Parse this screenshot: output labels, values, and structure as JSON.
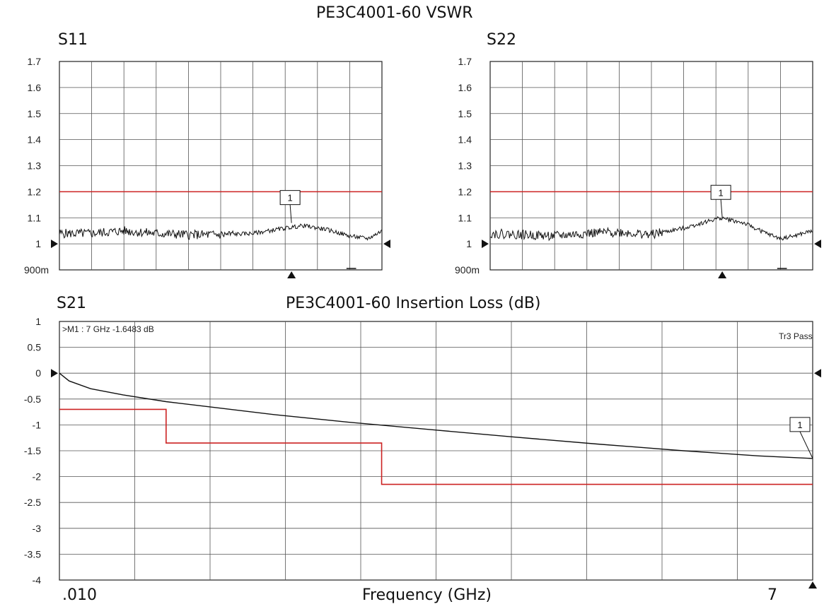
{
  "page": {
    "vswr_title": "PE3C4001-60 VSWR",
    "il_title": "PE3C4001-60 Insertion Loss (dB)",
    "xlabel": "Frequency (GHz)",
    "x_start_label": ".010",
    "x_stop_label": "7"
  },
  "chart_data": [
    {
      "id": "s11",
      "type": "line",
      "label": "S11",
      "y_ticks": [
        "1.7",
        "1.6",
        "1.5",
        "1.4",
        "1.3",
        "1.2",
        "1.1",
        "1",
        "900m"
      ],
      "ylim": [
        0.9,
        1.7
      ],
      "xlim": [
        0.01,
        7
      ],
      "grid": true,
      "limit_line": 1.2,
      "limit_color": "#cc2222",
      "trace_color": "#111111",
      "marker": {
        "label": "1",
        "x": 5.04,
        "y": 1.08
      },
      "series": [
        {
          "x": [
            0.01,
            0.7,
            1.4,
            2.1,
            2.8,
            3.5,
            4.2,
            4.9,
            5.3,
            5.8,
            6.3,
            6.7,
            7.0
          ],
          "values": [
            1.04,
            1.04,
            1.05,
            1.04,
            1.035,
            1.035,
            1.04,
            1.06,
            1.07,
            1.055,
            1.03,
            1.02,
            1.05
          ]
        }
      ]
    },
    {
      "id": "s22",
      "type": "line",
      "label": "S22",
      "y_ticks": [
        "1.7",
        "1.6",
        "1.5",
        "1.4",
        "1.3",
        "1.2",
        "1.1",
        "1",
        "900m"
      ],
      "ylim": [
        0.9,
        1.7
      ],
      "xlim": [
        0.01,
        7
      ],
      "grid": true,
      "limit_line": 1.2,
      "limit_color": "#cc2222",
      "trace_color": "#111111",
      "marker": {
        "label": "1",
        "x": 5.04,
        "y": 1.1
      },
      "series": [
        {
          "x": [
            0.01,
            0.7,
            1.4,
            2.1,
            2.8,
            3.5,
            4.2,
            4.6,
            5.0,
            5.5,
            6.0,
            6.3,
            6.6,
            7.0
          ],
          "values": [
            1.04,
            1.035,
            1.03,
            1.04,
            1.045,
            1.035,
            1.06,
            1.08,
            1.1,
            1.08,
            1.04,
            1.02,
            1.03,
            1.05
          ]
        }
      ]
    },
    {
      "id": "s21",
      "type": "line",
      "label": "S21",
      "y_ticks": [
        "1",
        "0.5",
        "0",
        "-0.5",
        "-1",
        "-1.5",
        "-2",
        "-2.5",
        "-3",
        "-3.5",
        "-4"
      ],
      "ylim": [
        -4,
        1
      ],
      "xlim": [
        0.01,
        7
      ],
      "grid": true,
      "marker_readout": ">M1 :  7 GHz  -1.6483  dB",
      "status_text": "Tr3 Pass",
      "trace_color": "#111111",
      "limit_color": "#cc2222",
      "marker": {
        "label": "1",
        "x": 7,
        "y": -1.6483
      },
      "series": [
        {
          "x": [
            0.01,
            0.1,
            0.3,
            0.6,
            1.0,
            1.4,
            2.0,
            2.7,
            3.5,
            4.2,
            5.0,
            5.8,
            6.5,
            7.0
          ],
          "values": [
            0,
            -0.15,
            -0.3,
            -0.42,
            -0.55,
            -0.65,
            -0.8,
            -0.95,
            -1.1,
            -1.23,
            -1.37,
            -1.5,
            -1.6,
            -1.6483
          ]
        }
      ],
      "limit_segments": [
        {
          "x": [
            0.01,
            1.0
          ],
          "y": -0.7
        },
        {
          "x": [
            1.0,
            3.0
          ],
          "y": -1.35
        },
        {
          "x": [
            3.0,
            7.0
          ],
          "y": -2.15
        }
      ]
    }
  ]
}
